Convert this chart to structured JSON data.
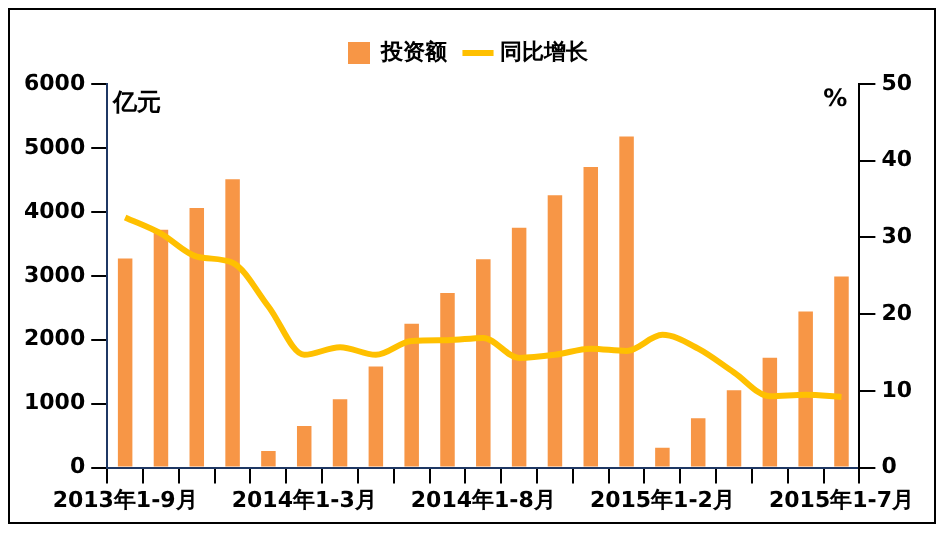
{
  "chart_data": {
    "type": "bar",
    "ylabel": "亿元",
    "y2label": "%",
    "categories": [
      "2013年1-9月",
      null,
      null,
      null,
      null,
      "2014年1-3月",
      null,
      null,
      null,
      null,
      "2014年1-8月",
      null,
      null,
      null,
      null,
      "2015年1-2月",
      null,
      null,
      null,
      null,
      "2015年1-7月"
    ],
    "series": [
      {
        "name": "投资额",
        "color": "#f79646",
        "values": [
          3270,
          3720,
          4060,
          4510,
          260,
          650,
          1070,
          1580,
          2250,
          2730,
          3260,
          3750,
          4260,
          4700,
          5180,
          310,
          770,
          1210,
          1720,
          2440,
          2990
        ]
      },
      {
        "name": "同比增长",
        "type": "line",
        "axis": "y2",
        "color": "#ffc000",
        "values": [
          32.6,
          30.5,
          27.5,
          26.7,
          21,
          14.7,
          15.7,
          14.7,
          16.5,
          16.6,
          16.9,
          14.3,
          14.7,
          15.5,
          15.2,
          17.3,
          15.5,
          12.4,
          9.3,
          9.5,
          9.2
        ]
      }
    ],
    "ylim": [
      0,
      6000
    ],
    "yticks": [
      0,
      1000,
      2000,
      3000,
      4000,
      5000,
      6000
    ],
    "y2lim": [
      0,
      50
    ],
    "y2ticks": [
      0,
      10,
      20,
      30,
      40,
      50
    ],
    "grid": false,
    "legend": "top",
    "marker": "none"
  }
}
